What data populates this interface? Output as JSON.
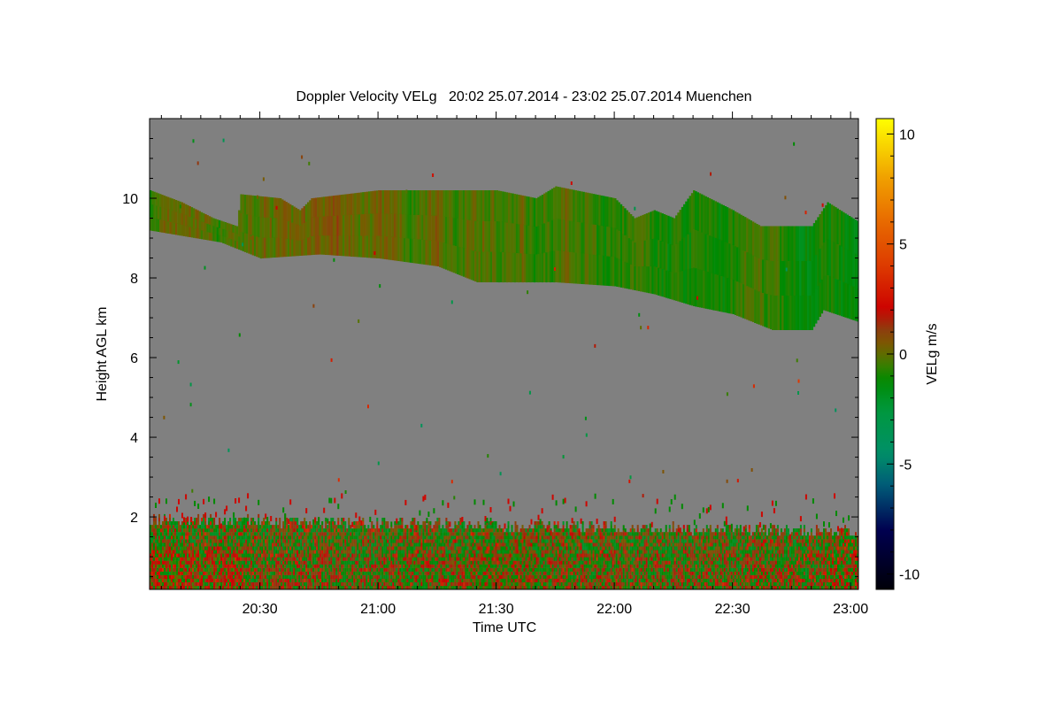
{
  "chart_data": {
    "type": "heatmap",
    "title": "Doppler Velocity VELg   20:02 25.07.2014 - 23:02 25.07.2014 Muenchen",
    "xlabel": "Time UTC",
    "ylabel": "Height AGL km",
    "colorbar_label": "VELg m/s",
    "x_range_minutes": [
      1202,
      1382
    ],
    "y_range_km": [
      0.18,
      12.0
    ],
    "x_ticks": [
      {
        "min": 1230,
        "label": "20:30"
      },
      {
        "min": 1260,
        "label": "21:00"
      },
      {
        "min": 1290,
        "label": "21:30"
      },
      {
        "min": 1320,
        "label": "22:00"
      },
      {
        "min": 1350,
        "label": "22:30"
      },
      {
        "min": 1380,
        "label": "23:00"
      }
    ],
    "y_ticks": [
      {
        "v": 2,
        "label": "2"
      },
      {
        "v": 4,
        "label": "4"
      },
      {
        "v": 6,
        "label": "6"
      },
      {
        "v": 8,
        "label": "8"
      },
      {
        "v": 10,
        "label": "10"
      }
    ],
    "colorbar_range": [
      -10.7,
      10.7
    ],
    "colorbar_ticks": [
      {
        "v": 10,
        "label": "10"
      },
      {
        "v": 5,
        "label": "5"
      },
      {
        "v": 0,
        "label": "0"
      },
      {
        "v": -5,
        "label": "-5"
      },
      {
        "v": -10,
        "label": "-10"
      }
    ],
    "no_data_color": "#808080",
    "colormap": [
      [
        -10.7,
        "#000008"
      ],
      [
        -8,
        "#000050"
      ],
      [
        -6,
        "#005a78"
      ],
      [
        -4.5,
        "#009068"
      ],
      [
        -2.5,
        "#00983c"
      ],
      [
        -1.2,
        "#008a00"
      ],
      [
        -0.3,
        "#4a7a00"
      ],
      [
        0.4,
        "#7a5a00"
      ],
      [
        1.2,
        "#903a10"
      ],
      [
        2,
        "#cc0000"
      ],
      [
        4,
        "#dd3a00"
      ],
      [
        6,
        "#e86a00"
      ],
      [
        8,
        "#f0a000"
      ],
      [
        10.7,
        "#ffff00"
      ]
    ],
    "upper_cloud_layer": {
      "mean_velocity_ms": -0.6,
      "top_km": [
        [
          1202,
          10.2
        ],
        [
          1210,
          9.9
        ],
        [
          1218,
          9.5
        ],
        [
          1224,
          9.3
        ],
        [
          1225,
          10.1
        ],
        [
          1235,
          10.0
        ],
        [
          1240,
          9.7
        ],
        [
          1243,
          10.0
        ],
        [
          1260,
          10.2
        ],
        [
          1290,
          10.2
        ],
        [
          1300,
          10.0
        ],
        [
          1305,
          10.3
        ],
        [
          1320,
          10.0
        ],
        [
          1325,
          9.5
        ],
        [
          1330,
          9.7
        ],
        [
          1335,
          9.5
        ],
        [
          1340,
          10.2
        ],
        [
          1350,
          9.7
        ],
        [
          1357,
          9.3
        ],
        [
          1370,
          9.3
        ],
        [
          1374,
          9.9
        ],
        [
          1382,
          9.4
        ]
      ],
      "base_km": [
        [
          1202,
          9.2
        ],
        [
          1220,
          8.9
        ],
        [
          1230,
          8.5
        ],
        [
          1245,
          8.6
        ],
        [
          1260,
          8.5
        ],
        [
          1275,
          8.3
        ],
        [
          1285,
          7.9
        ],
        [
          1305,
          7.9
        ],
        [
          1320,
          7.8
        ],
        [
          1330,
          7.6
        ],
        [
          1340,
          7.3
        ],
        [
          1350,
          7.1
        ],
        [
          1360,
          6.7
        ],
        [
          1370,
          6.7
        ],
        [
          1373,
          7.2
        ],
        [
          1382,
          6.9
        ]
      ]
    },
    "boundary_layer": {
      "base_km": 0.18,
      "top_km": 1.9,
      "speckle_top_km": 2.6,
      "velocity_range_ms": [
        -2.5,
        3
      ]
    }
  }
}
